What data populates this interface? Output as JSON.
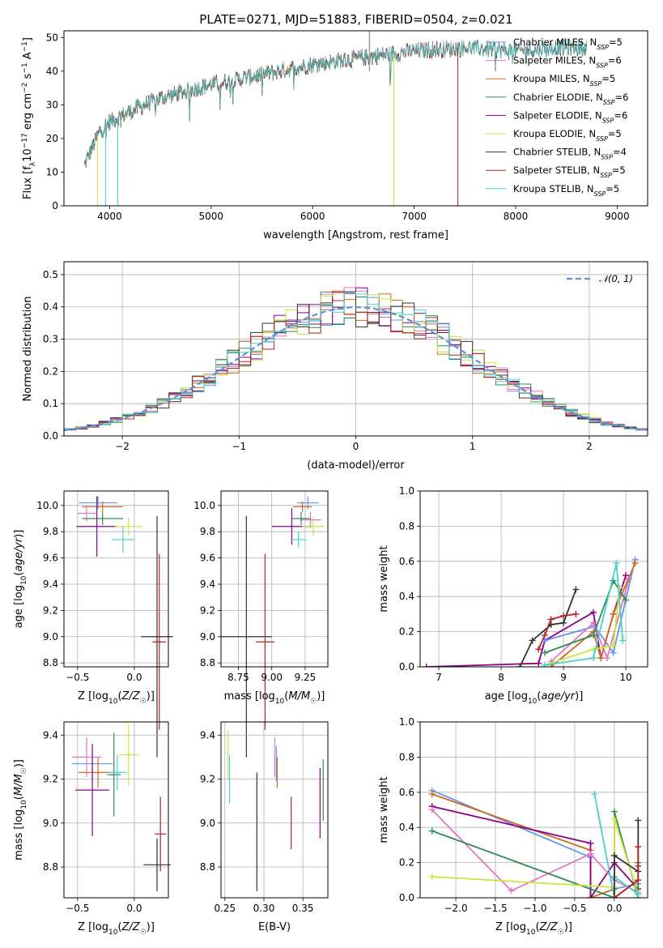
{
  "figure_title": "PLATE=0271, MJD=51883, FIBERID=0504, z=0.021",
  "colors": {
    "chabrier_miles": "#6495ED",
    "salpeter_miles": "#E377C2",
    "kroupa_miles": "#D2691E",
    "chabrier_elodie": "#2E8B57",
    "salpeter_elodie": "#8B008B",
    "kroupa_elodie": "#C8E63C",
    "chabrier_stelib": "#333333",
    "salpeter_stelib": "#B22222",
    "kroupa_stelib": "#48D1CC"
  },
  "chart_data": [
    {
      "id": "spectrum",
      "type": "line",
      "xlabel": "wavelength [Angstrom, rest frame]",
      "ylabel": "Flux [f_λ 10^-17 erg cm^-2 s^-1 A^-1]",
      "xlim": [
        3550,
        9300
      ],
      "ylim": [
        0,
        52
      ],
      "xticks": [
        "4000",
        "5000",
        "6000",
        "7000",
        "8000",
        "9000"
      ],
      "xtick_values": [
        4000,
        5000,
        6000,
        7000,
        8000,
        9000
      ],
      "yticks": [
        "0",
        "10",
        "20",
        "30",
        "40",
        "50"
      ],
      "ytick_values": [
        0,
        10,
        20,
        30,
        40,
        50
      ],
      "legend_loc": "right",
      "series": [
        {
          "name": "Chabrier MILES, N_SSP=5",
          "color": "#6495ED",
          "wave_range": [
            3750,
            8700
          ]
        },
        {
          "name": "Salpeter MILES, N_SSP=6",
          "color": "#E377C2",
          "wave_range": [
            3750,
            8700
          ]
        },
        {
          "name": "Kroupa MILES, N_SSP=5",
          "color": "#D2691E",
          "wave_range": [
            3750,
            8700
          ]
        },
        {
          "name": "Chabrier ELODIE, N_SSP=6",
          "color": "#2E8B57",
          "wave_range": [
            3750,
            6800
          ]
        },
        {
          "name": "Salpeter ELODIE, N_SSP=6",
          "color": "#8B008B",
          "wave_range": [
            3750,
            6800
          ]
        },
        {
          "name": "Kroupa ELODIE, N_SSP=5",
          "color": "#C8E63C",
          "wave_range": [
            3750,
            6800
          ]
        },
        {
          "name": "Chabrier STELIB, N_SSP=4",
          "color": "#333333",
          "wave_range": [
            3750,
            8700
          ]
        },
        {
          "name": "Salpeter STELIB, N_SSP=5",
          "color": "#B22222",
          "wave_range": [
            3750,
            7430
          ]
        },
        {
          "name": "Kroupa STELIB, N_SSP=5",
          "color": "#48D1CC",
          "wave_range": [
            3750,
            8700
          ]
        }
      ],
      "continuum": [
        [
          3750,
          12
        ],
        [
          3900,
          22
        ],
        [
          4000,
          25
        ],
        [
          4200,
          28
        ],
        [
          4500,
          32
        ],
        [
          5000,
          36
        ],
        [
          5500,
          39
        ],
        [
          6000,
          42
        ],
        [
          6500,
          44
        ],
        [
          7000,
          46
        ],
        [
          7500,
          47
        ],
        [
          8000,
          46
        ],
        [
          8500,
          47
        ],
        [
          8700,
          47
        ]
      ]
    },
    {
      "id": "residuals",
      "type": "bar",
      "xlabel": "(data-model)/error",
      "ylabel": "Normed distribution",
      "xlim": [
        -2.5,
        2.5
      ],
      "ylim": [
        0,
        0.54
      ],
      "xticks": [
        "−2",
        "−1",
        "0",
        "1",
        "2"
      ],
      "xtick_values": [
        -2,
        -1,
        0,
        1,
        2
      ],
      "yticks": [
        "0.0",
        "0.1",
        "0.2",
        "0.3",
        "0.4",
        "0.5"
      ],
      "ytick_values": [
        0,
        0.1,
        0.2,
        0.3,
        0.4,
        0.5
      ],
      "legend": "𝒩(0, 1)",
      "legend_loc": "top-right",
      "gaussian_color": "#5B8FE0",
      "bin_width": 0.1
    },
    {
      "id": "age_vs_Z",
      "type": "scatter",
      "xlabel": "Z [log10(Z/Z☉)]",
      "ylabel": "age [log10(age/yr)]",
      "xlim": [
        -0.62,
        0.3
      ],
      "ylim": [
        8.77,
        10.11
      ],
      "xticks": [
        "−0.5",
        "0.0"
      ],
      "xtick_values": [
        -0.5,
        0.0
      ],
      "yticks": [
        "8.8",
        "9.0",
        "9.2",
        "9.4",
        "9.6",
        "9.8",
        "10.0"
      ],
      "ytick_values": [
        8.8,
        9.0,
        9.2,
        9.4,
        9.6,
        9.8,
        10.0
      ],
      "points": [
        {
          "color": "#6495ED",
          "x": -0.32,
          "xerr": 0.17,
          "y": 10.02,
          "yerr": 0.05
        },
        {
          "color": "#D2691E",
          "x": -0.28,
          "xerr": 0.18,
          "y": 9.99,
          "yerr": 0.04
        },
        {
          "color": "#E377C2",
          "x": -0.42,
          "xerr": 0.08,
          "y": 9.94,
          "yerr": 0.06
        },
        {
          "color": "#2E8B57",
          "x": -0.28,
          "xerr": 0.18,
          "y": 9.9,
          "yerr": 0.05
        },
        {
          "color": "#8B008B",
          "x": -0.33,
          "xerr": 0.18,
          "y": 9.84,
          "yerr": 0.23
        },
        {
          "color": "#C8E63C",
          "x": -0.05,
          "xerr": 0.12,
          "y": 9.84,
          "yerr": 0.07
        },
        {
          "color": "#48D1CC",
          "x": -0.1,
          "xerr": 0.1,
          "y": 9.74,
          "yerr": 0.1
        },
        {
          "color": "#333333",
          "x": 0.2,
          "xerr": 0.14,
          "y": 9.0,
          "yerr": 0.92
        },
        {
          "color": "#B22222",
          "x": 0.22,
          "xerr": 0.06,
          "y": 8.96,
          "yerr": 0.67
        }
      ]
    },
    {
      "id": "age_vs_mass",
      "type": "scatter",
      "xlabel": "mass [log10(M/M☉)]",
      "ylabel": "",
      "xlim": [
        8.62,
        9.42
      ],
      "ylim": [
        8.77,
        10.11
      ],
      "xticks": [
        "8.75",
        "9.00",
        "9.25"
      ],
      "xtick_values": [
        8.75,
        9.0,
        9.25
      ],
      "yticks": [
        "8.8",
        "9.0",
        "9.2",
        "9.4",
        "9.6",
        "9.8",
        "10.0"
      ],
      "ytick_values": [
        8.8,
        9.0,
        9.2,
        9.4,
        9.6,
        9.8,
        10.0
      ],
      "points": [
        {
          "color": "#6495ED",
          "x": 9.27,
          "xerr": 0.08,
          "y": 10.02,
          "yerr": 0.05
        },
        {
          "color": "#D2691E",
          "x": 9.23,
          "xerr": 0.07,
          "y": 9.99,
          "yerr": 0.04
        },
        {
          "color": "#E377C2",
          "x": 9.29,
          "xerr": 0.08,
          "y": 9.89,
          "yerr": 0.06
        },
        {
          "color": "#2E8B57",
          "x": 9.22,
          "xerr": 0.07,
          "y": 9.9,
          "yerr": 0.05
        },
        {
          "color": "#8B008B",
          "x": 9.15,
          "xerr": 0.15,
          "y": 9.84,
          "yerr": 0.14
        },
        {
          "color": "#C8E63C",
          "x": 9.31,
          "xerr": 0.08,
          "y": 9.84,
          "yerr": 0.07
        },
        {
          "color": "#48D1CC",
          "x": 9.2,
          "xerr": 0.06,
          "y": 9.74,
          "yerr": 0.06
        },
        {
          "color": "#333333",
          "x": 8.81,
          "xerr": 0.19,
          "y": 9.0,
          "yerr": 0.92
        },
        {
          "color": "#B22222",
          "x": 8.95,
          "xerr": 0.07,
          "y": 8.96,
          "yerr": 0.67
        }
      ]
    },
    {
      "id": "weight_vs_age",
      "type": "line",
      "xlabel": "age [log10(age/yr)]",
      "ylabel": "mass weight",
      "xlim": [
        6.7,
        10.35
      ],
      "ylim": [
        0,
        1.0
      ],
      "xticks": [
        "7",
        "8",
        "9",
        "10"
      ],
      "xtick_values": [
        7,
        8,
        9,
        10
      ],
      "yticks": [
        "0.0",
        "0.2",
        "0.4",
        "0.6",
        "0.8",
        "1.0"
      ],
      "ytick_values": [
        0,
        0.2,
        0.4,
        0.6,
        0.8,
        1.0
      ],
      "series": [
        {
          "color": "#8B008B",
          "x": [
            6.8,
            8.6,
            8.7,
            9.48,
            9.6,
            9.8,
            10.0
          ],
          "y": [
            0.0,
            0.02,
            0.15,
            0.31,
            0.05,
            0.3,
            0.52
          ]
        },
        {
          "color": "#333333",
          "x": [
            8.3,
            8.5,
            8.8,
            9.0,
            9.2
          ],
          "y": [
            0.0,
            0.15,
            0.24,
            0.25,
            0.44
          ]
        },
        {
          "color": "#B22222",
          "x": [
            8.6,
            8.7,
            8.8,
            9.0,
            9.2
          ],
          "y": [
            0.1,
            0.18,
            0.27,
            0.29,
            0.3
          ]
        },
        {
          "color": "#6495ED",
          "x": [
            8.7,
            9.5,
            9.8,
            10.15
          ],
          "y": [
            0.15,
            0.23,
            0.08,
            0.61
          ]
        },
        {
          "color": "#E377C2",
          "x": [
            8.8,
            9.48,
            9.7,
            10.05
          ],
          "y": [
            0.03,
            0.25,
            0.05,
            0.5
          ]
        },
        {
          "color": "#D2691E",
          "x": [
            8.8,
            9.48,
            9.6,
            9.8,
            10.15
          ],
          "y": [
            0.0,
            0.2,
            0.05,
            0.3,
            0.59
          ]
        },
        {
          "color": "#2E8B57",
          "x": [
            8.7,
            9.48,
            9.8,
            10.0
          ],
          "y": [
            0.08,
            0.18,
            0.49,
            0.38
          ]
        },
        {
          "color": "#C8E63C",
          "x": [
            8.7,
            9.48,
            9.8,
            9.9
          ],
          "y": [
            0.01,
            0.1,
            0.12,
            0.45
          ]
        },
        {
          "color": "#48D1CC",
          "x": [
            8.7,
            9.48,
            9.85,
            9.95
          ],
          "y": [
            0.01,
            0.05,
            0.59,
            0.15
          ]
        }
      ]
    },
    {
      "id": "mass_vs_Z",
      "type": "scatter",
      "xlabel": "Z [log10(Z/Z☉)]",
      "ylabel": "mass [log10(M/M☉)]",
      "xlim": [
        -0.62,
        0.3
      ],
      "ylim": [
        8.66,
        9.46
      ],
      "xticks": [
        "−0.5",
        "0.0"
      ],
      "xtick_values": [
        -0.5,
        0.0
      ],
      "yticks": [
        "8.8",
        "9.0",
        "9.2",
        "9.4"
      ],
      "ytick_values": [
        8.8,
        9.0,
        9.2,
        9.4
      ],
      "points": [
        {
          "color": "#6495ED",
          "x": -0.37,
          "xerr": 0.18,
          "y": 9.27,
          "yerr": 0.08
        },
        {
          "color": "#D2691E",
          "x": -0.32,
          "xerr": 0.17,
          "y": 9.23,
          "yerr": 0.07
        },
        {
          "color": "#E377C2",
          "x": -0.42,
          "xerr": 0.13,
          "y": 9.3,
          "yerr": 0.09
        },
        {
          "color": "#2E8B57",
          "x": -0.18,
          "xerr": 0.06,
          "y": 9.22,
          "yerr": 0.19
        },
        {
          "color": "#8B008B",
          "x": -0.37,
          "xerr": 0.15,
          "y": 9.15,
          "yerr": 0.21
        },
        {
          "color": "#C8E63C",
          "x": -0.05,
          "xerr": 0.09,
          "y": 9.31,
          "yerr": 0.14
        },
        {
          "color": "#48D1CC",
          "x": -0.15,
          "xerr": 0.08,
          "y": 9.23,
          "yerr": 0.08
        },
        {
          "color": "#333333",
          "x": 0.2,
          "xerr": 0.12,
          "y": 8.81,
          "yerr": 0.12
        },
        {
          "color": "#B22222",
          "x": 0.23,
          "xerr": 0.05,
          "y": 8.95,
          "yerr": 0.17
        }
      ]
    },
    {
      "id": "mass_vs_ebv",
      "type": "scatter",
      "xlabel": "E(B-V)",
      "ylabel": "",
      "xlim": [
        0.245,
        0.382
      ],
      "ylim": [
        8.66,
        9.46
      ],
      "xticks": [
        "0.25",
        "0.30",
        "0.35"
      ],
      "xtick_values": [
        0.25,
        0.3,
        0.35
      ],
      "yticks": [
        "8.8",
        "9.0",
        "9.2",
        "9.4"
      ],
      "ytick_values": [
        8.8,
        9.0,
        9.2,
        9.4
      ],
      "points": [
        {
          "color": "#C8E63C",
          "x": 0.254,
          "y": 9.31,
          "yerr": 0.11
        },
        {
          "color": "#48D1CC",
          "x": 0.256,
          "y": 9.2,
          "yerr": 0.11
        },
        {
          "color": "#333333",
          "x": 0.291,
          "y": 8.96,
          "yerr": 0.27
        },
        {
          "color": "#E377C2",
          "x": 0.314,
          "y": 9.3,
          "yerr": 0.09
        },
        {
          "color": "#6495ED",
          "x": 0.316,
          "y": 9.27,
          "yerr": 0.08
        },
        {
          "color": "#D2691E",
          "x": 0.317,
          "y": 9.23,
          "yerr": 0.07
        },
        {
          "color": "#B22222",
          "x": 0.335,
          "y": 9.0,
          "yerr": 0.12
        },
        {
          "color": "#8B008B",
          "x": 0.372,
          "y": 9.09,
          "yerr": 0.16
        },
        {
          "color": "#2E8B57",
          "x": 0.376,
          "y": 9.15,
          "yerr": 0.14
        }
      ]
    },
    {
      "id": "weight_vs_Z",
      "type": "line",
      "xlabel": "Z [log10(Z/Z☉)]",
      "ylabel": "mass weight",
      "xlim": [
        -2.45,
        0.42
      ],
      "ylim": [
        0,
        1.0
      ],
      "xticks": [
        "−2.0",
        "−1.5",
        "−1.0",
        "−0.5",
        "0.0"
      ],
      "xtick_values": [
        -2.0,
        -1.5,
        -1.0,
        -0.5,
        0.0
      ],
      "yticks": [
        "0.0",
        "0.2",
        "0.4",
        "0.6",
        "0.8",
        "1.0"
      ],
      "ytick_values": [
        0,
        0.2,
        0.4,
        0.6,
        0.8,
        1.0
      ],
      "series": [
        {
          "color": "#6495ED",
          "x": [
            -2.3,
            -0.3,
            -0.3,
            0.0,
            0.0,
            0.3
          ],
          "y": [
            0.61,
            0.23,
            0.0,
            0.0,
            0.05,
            0.08
          ]
        },
        {
          "color": "#D2691E",
          "x": [
            -2.3,
            -0.3,
            -0.3,
            0.0,
            0.0,
            0.3
          ],
          "y": [
            0.59,
            0.27,
            0.0,
            0.05,
            0.0,
            0.1
          ]
        },
        {
          "color": "#8B008B",
          "x": [
            -2.3,
            -0.3,
            -0.3,
            0.0,
            0.3
          ],
          "y": [
            0.52,
            0.31,
            0.0,
            0.2,
            0.05
          ]
        },
        {
          "color": "#E377C2",
          "x": [
            -2.3,
            -1.3,
            -0.3,
            0.0,
            0.3
          ],
          "y": [
            0.5,
            0.04,
            0.25,
            0.1,
            0.03
          ]
        },
        {
          "color": "#2E8B57",
          "x": [
            -2.3,
            0.0,
            0.0,
            0.3,
            0.3
          ],
          "y": [
            0.38,
            0.0,
            0.49,
            0.0,
            0.2
          ]
        },
        {
          "color": "#C8E63C",
          "x": [
            -2.3,
            0.0,
            0.0,
            0.3
          ],
          "y": [
            0.12,
            0.06,
            0.45,
            0.02
          ]
        },
        {
          "color": "#48D1CC",
          "x": [
            -0.25,
            0.0,
            0.0,
            0.3
          ],
          "y": [
            0.59,
            0.0,
            0.12,
            0.02
          ]
        },
        {
          "color": "#333333",
          "x": [
            0.0,
            0.0,
            0.3,
            0.3
          ],
          "y": [
            0.0,
            0.24,
            0.15,
            0.44
          ]
        },
        {
          "color": "#B22222",
          "x": [
            0.0,
            0.3,
            0.3,
            0.3
          ],
          "y": [
            0.0,
            0.1,
            0.18,
            0.29
          ]
        }
      ]
    }
  ]
}
